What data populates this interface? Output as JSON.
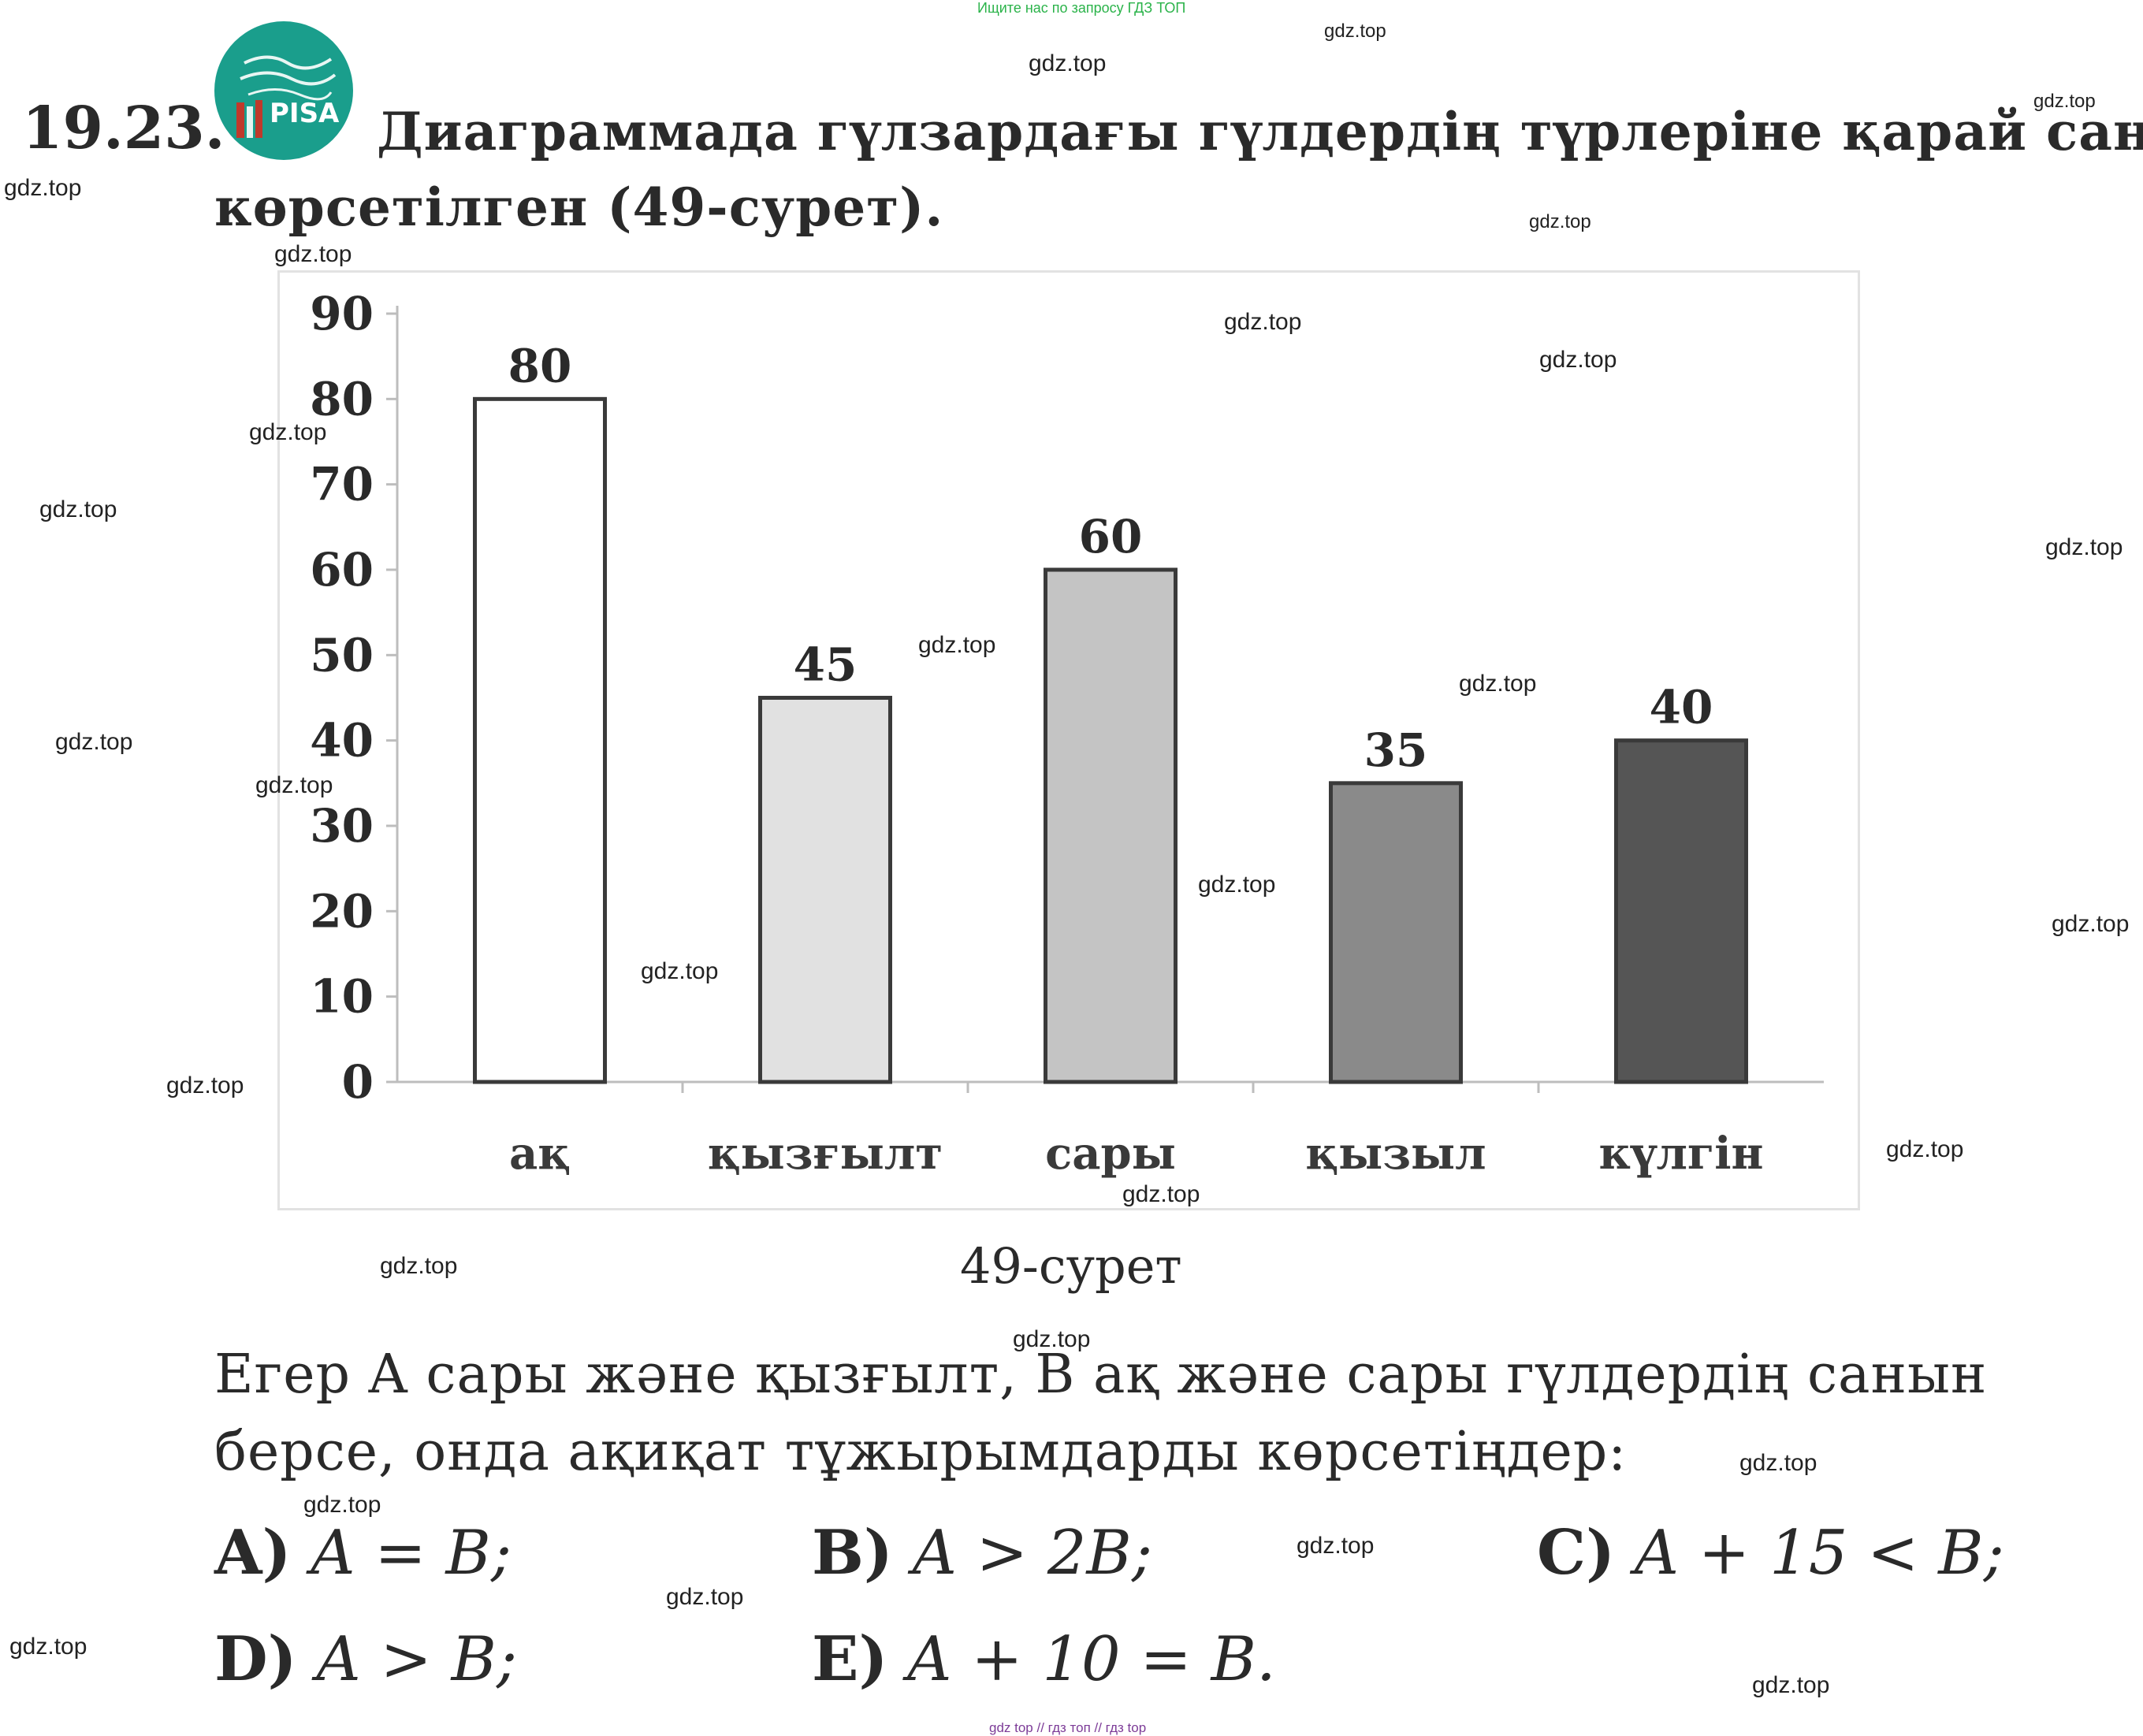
{
  "banner": {
    "top_text": "Ищите нас по запросу ГДЗ ТОП",
    "footer_text": "gdz top // гдз топ // гдз top"
  },
  "watermark": "gdz.top",
  "logo": {
    "text": "PISA",
    "colors": {
      "badge": "#1a9e8c",
      "shelf": "#c0392b"
    }
  },
  "task": {
    "number": "19.23.",
    "question_line_1": "Диаграммада гүлзардағы гүлдердің түрлеріне қарай саны",
    "question_line_2": "көрсетілген (49-сурет)."
  },
  "chart_data": {
    "type": "bar",
    "categories": [
      "ақ",
      "қызғылт",
      "сары",
      "қызыл",
      "күлгін"
    ],
    "values": [
      80,
      45,
      60,
      35,
      40
    ],
    "data_labels": [
      "80",
      "45",
      "60",
      "35",
      "40"
    ],
    "bar_colors": [
      "#ffffff",
      "#e1e1e1",
      "#c4c4c4",
      "#8a8a8a",
      "#555555"
    ],
    "yticks": [
      "0",
      "10",
      "20",
      "30",
      "40",
      "50",
      "60",
      "70",
      "80",
      "90"
    ],
    "ylim": [
      0,
      90
    ],
    "title": "",
    "xlabel": "",
    "ylabel": "",
    "grid": false
  },
  "figure_caption": "49-сурет",
  "condition": {
    "line_1": "Егер A сары және қызғылт, B ақ және сары гүлдердің санын",
    "line_2": "берсе, онда ақиқат тұжырымдарды көрсетіңдер:"
  },
  "options": [
    {
      "label": "A)",
      "expr": "A = B;"
    },
    {
      "label": "B)",
      "expr": "A > 2B;"
    },
    {
      "label": "C)",
      "expr": "A + 15 < B;"
    },
    {
      "label": "D)",
      "expr": "A > B;"
    },
    {
      "label": "E)",
      "expr": "A + 10 = B."
    }
  ]
}
